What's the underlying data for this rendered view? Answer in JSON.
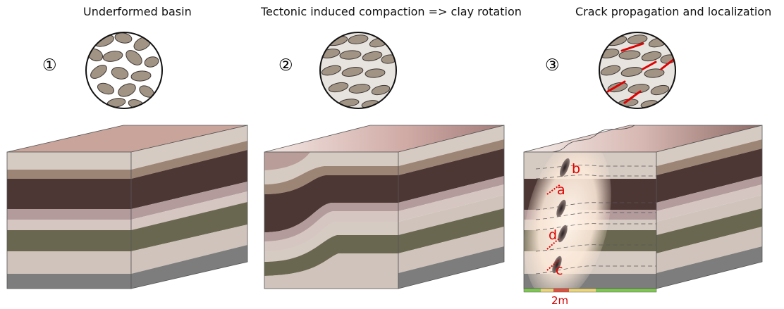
{
  "panels": [
    {
      "step": "①",
      "title": "Underformed basin"
    },
    {
      "step": "②",
      "title": "Tectonic induced compaction => clay rotation"
    },
    {
      "step": "③",
      "title": "Crack propagation and localization"
    }
  ],
  "fault_labels": [
    "b",
    "a",
    "d",
    "c"
  ],
  "scale_bar": {
    "label": "2m"
  },
  "colors": {
    "top": "#c9a49a",
    "light": "#d6cbc3",
    "tan": "#9d8576",
    "dark": "#4c3734",
    "mauve": "#b39b9c",
    "pale": "#d5c6c1",
    "olive": "#6a6750",
    "grey": "#7d7d7d",
    "fault": "#e00000",
    "scale_green": "#7ec850",
    "scale_yellow": "#ecd67a",
    "scale_red": "#e0503c"
  }
}
